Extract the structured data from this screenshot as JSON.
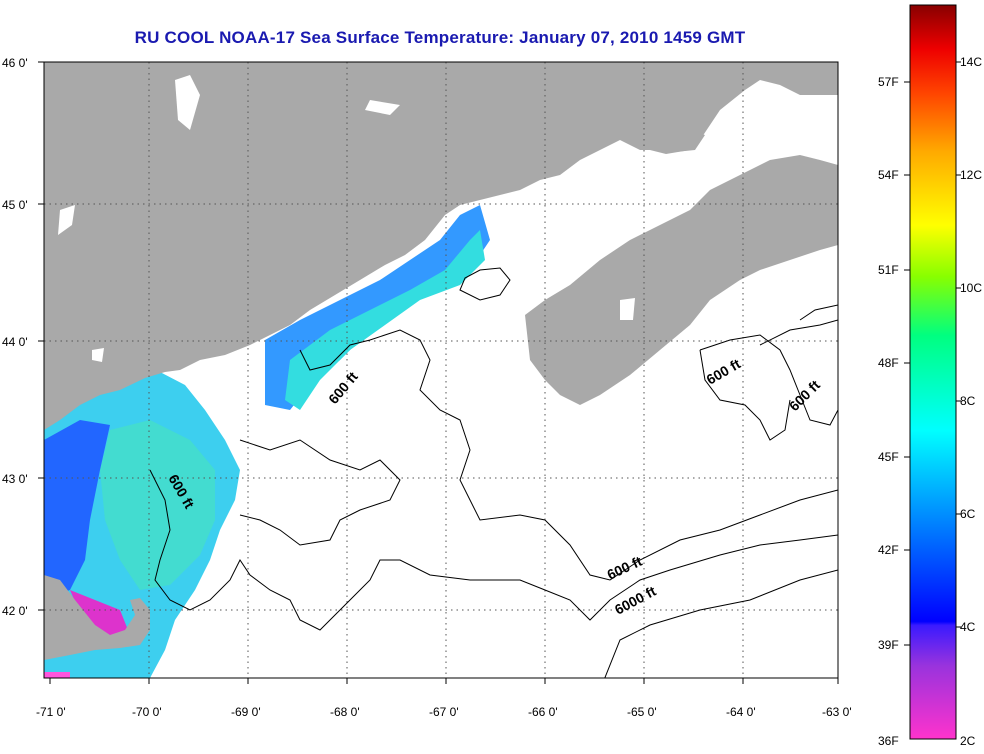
{
  "title": "RU COOL  NOAA-17  Sea Surface Temperature:  January 07, 2010 1459 GMT",
  "map": {
    "lat_ticks": [
      "46 0'",
      "45 0'",
      "44 0'",
      "43 0'",
      "42 0'"
    ],
    "lon_ticks": [
      "-71 0'",
      "-70 0'",
      "-69 0'",
      "-68 0'",
      "-67 0'",
      "-66 0'",
      "-65 0'",
      "-64 0'",
      "-63 0'"
    ],
    "contour_labels": [
      "600 ft",
      "600 ft",
      "600 ft",
      "600 ft",
      "600 ft",
      "6000 ft"
    ],
    "colors": {
      "land": "#a9a9a9",
      "water": "#ffffff",
      "contour": "#000000"
    }
  },
  "colorbar": {
    "f_labels": [
      "57F",
      "54F",
      "51F",
      "48F",
      "45F",
      "42F",
      "39F",
      "36F"
    ],
    "c_labels": [
      "14C",
      "12C",
      "10C",
      "8C",
      "6C",
      "4C",
      "2C"
    ],
    "range_c": [
      2,
      15
    ],
    "range_f": [
      36,
      59
    ]
  }
}
